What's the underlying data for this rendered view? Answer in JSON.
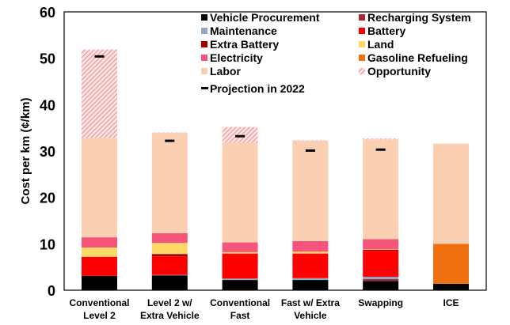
{
  "chart_data": {
    "type": "bar",
    "stacked": true,
    "ylabel": "Cost per km (¢/km)",
    "xlabel": "",
    "ylim": [
      0,
      60
    ],
    "yticks": [
      0,
      10,
      20,
      30,
      40,
      50,
      60
    ],
    "grid": false,
    "legend_position": "top-right",
    "categories": [
      [
        "Conventional",
        "Level 2"
      ],
      [
        "Level 2 w/",
        "Extra Vehicle"
      ],
      [
        "Conventional",
        "Fast"
      ],
      [
        "Fast w/ Extra",
        "Vehicle"
      ],
      [
        "Swapping",
        ""
      ],
      [
        "ICE",
        ""
      ]
    ],
    "series": [
      {
        "name": "Vehicle Procurement",
        "color": "#000000",
        "values": [
          3.1,
          3.2,
          2.2,
          2.2,
          2.0,
          1.4
        ]
      },
      {
        "name": "Recharging System",
        "color": "#a8283c",
        "values": [
          0,
          0,
          0,
          0,
          0.4,
          0
        ]
      },
      {
        "name": "Maintenance",
        "color": "#8fa9c2",
        "values": [
          0,
          0.1,
          0.3,
          0.4,
          0.5,
          0
        ]
      },
      {
        "name": "Battery",
        "color": "#ff0000",
        "values": [
          4.1,
          4.0,
          5.4,
          5.3,
          5.6,
          0
        ]
      },
      {
        "name": "Extra Battery",
        "color": "#a00000",
        "values": [
          0,
          0.5,
          0,
          0,
          0.2,
          0
        ]
      },
      {
        "name": "Land",
        "color": "#ffd966",
        "values": [
          2.0,
          2.4,
          0.3,
          0.4,
          0.1,
          0
        ]
      },
      {
        "name": "Electricity",
        "color": "#f5557a",
        "values": [
          2.2,
          2.1,
          2.1,
          2.3,
          2.2,
          0
        ]
      },
      {
        "name": "Gasoline Refueling",
        "color": "#f07010",
        "values": [
          0,
          0,
          0,
          0,
          0,
          8.6
        ]
      },
      {
        "name": "Labor",
        "color": "#fbcfb2",
        "values": [
          21.4,
          21.6,
          21.5,
          21.6,
          21.5,
          21.6
        ]
      },
      {
        "name": "Opportunity",
        "color": "#f19a9a",
        "pattern": "hatched",
        "values": [
          19.1,
          0.1,
          3.4,
          0.1,
          0.2,
          0
        ]
      }
    ],
    "projection": {
      "name": "Projection in 2022",
      "values": [
        50.4,
        32.2,
        33.2,
        30.1,
        30.3,
        null
      ]
    }
  }
}
